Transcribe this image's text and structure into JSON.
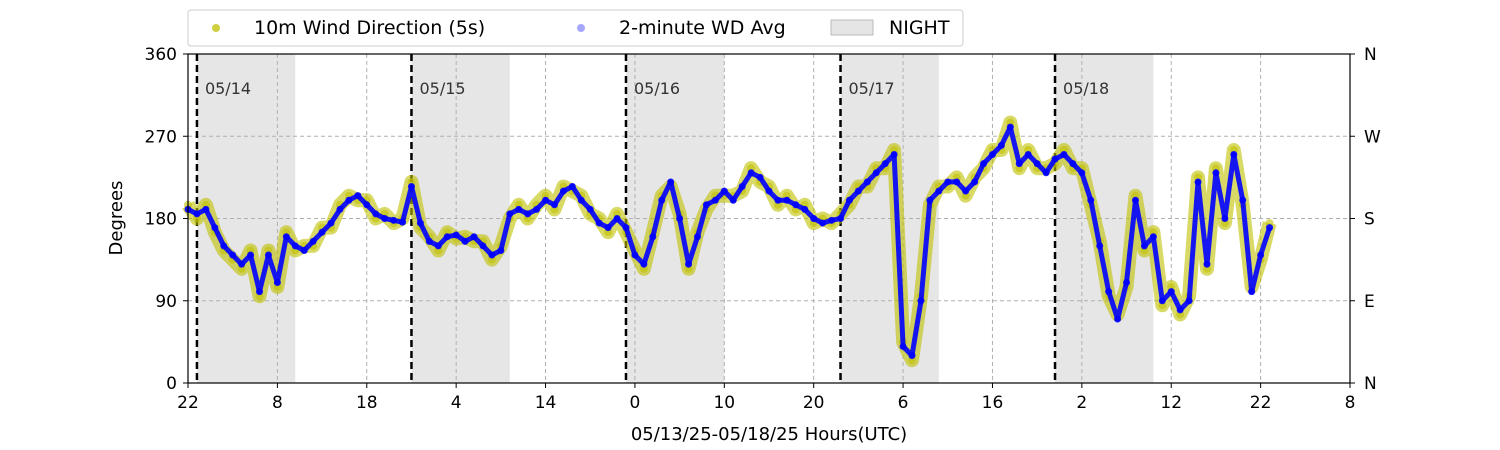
{
  "chart_data": {
    "type": "scatter",
    "xlabel": "05/13/25-05/18/25  Hours(UTC)",
    "ylabel": "Degrees",
    "x_tick_labels": [
      "22",
      "8",
      "18",
      "4",
      "14",
      "0",
      "10",
      "20",
      "6",
      "16",
      "2",
      "12",
      "22",
      "8"
    ],
    "x_range_hours": [
      0,
      130
    ],
    "x_tick_hours": [
      0,
      10,
      20,
      30,
      40,
      50,
      60,
      70,
      80,
      90,
      100,
      110,
      120,
      130
    ],
    "y_ticks": [
      0,
      90,
      180,
      270,
      360
    ],
    "ylim": [
      0,
      360
    ],
    "y2_tick_labels": [
      "N",
      "E",
      "S",
      "W",
      "N"
    ],
    "grid": true,
    "legend_position": "top-left",
    "legend": [
      {
        "label": "10m Wind Direction (5s)",
        "color": "#bfbf00",
        "marker": "dot"
      },
      {
        "label": "2-minute WD Avg",
        "color": "#0000ff",
        "marker": "dot"
      },
      {
        "label": "NIGHT",
        "color": "#d3d3d3",
        "marker": "patch"
      }
    ],
    "night_periods_hours": [
      [
        1,
        12
      ],
      [
        25,
        36
      ],
      [
        49,
        60
      ],
      [
        73,
        84
      ],
      [
        97,
        108
      ]
    ],
    "day_boundaries": [
      {
        "hour": 1,
        "label": "05/14"
      },
      {
        "hour": 25,
        "label": "05/15"
      },
      {
        "hour": 49,
        "label": "05/16"
      },
      {
        "hour": 73,
        "label": "05/17"
      },
      {
        "hour": 97,
        "label": "05/18"
      }
    ],
    "series": [
      {
        "name": "2-minute WD Avg",
        "color": "#0000ff",
        "x_hours": [
          0,
          1,
          2,
          3,
          4,
          5,
          6,
          7,
          8,
          9,
          10,
          11,
          12,
          13,
          14,
          15,
          16,
          17,
          18,
          19,
          20,
          21,
          22,
          23,
          24,
          25,
          26,
          27,
          28,
          29,
          30,
          31,
          32,
          33,
          34,
          35,
          36,
          37,
          38,
          39,
          40,
          41,
          42,
          43,
          44,
          45,
          46,
          47,
          48,
          49,
          50,
          51,
          52,
          53,
          54,
          55,
          56,
          57,
          58,
          59,
          60,
          61,
          62,
          63,
          64,
          65,
          66,
          67,
          68,
          69,
          70,
          71,
          72,
          73,
          74,
          75,
          76,
          77,
          78,
          79,
          80,
          81,
          82,
          83,
          84,
          85,
          86,
          87,
          88,
          89,
          90,
          91,
          92,
          93,
          94,
          95,
          96,
          97,
          98,
          99,
          100,
          101,
          102,
          103,
          104,
          105,
          106,
          107,
          108,
          109,
          110,
          111,
          112,
          113,
          114,
          115,
          116,
          117,
          118,
          119,
          120,
          121
        ],
        "values": [
          190,
          185,
          190,
          170,
          150,
          140,
          130,
          140,
          100,
          140,
          110,
          160,
          150,
          145,
          155,
          165,
          175,
          190,
          200,
          205,
          195,
          185,
          180,
          178,
          176,
          215,
          175,
          155,
          150,
          160,
          162,
          155,
          160,
          150,
          140,
          145,
          185,
          190,
          185,
          190,
          200,
          195,
          210,
          215,
          200,
          190,
          175,
          170,
          180,
          170,
          140,
          130,
          160,
          200,
          220,
          180,
          130,
          160,
          195,
          200,
          210,
          200,
          215,
          230,
          225,
          210,
          200,
          200,
          195,
          190,
          180,
          175,
          178,
          180,
          200,
          210,
          220,
          230,
          240,
          250,
          40,
          30,
          90,
          200,
          210,
          220,
          220,
          210,
          220,
          240,
          250,
          260,
          280,
          240,
          250,
          240,
          230,
          245,
          250,
          240,
          230,
          200,
          150,
          100,
          70,
          110,
          200,
          150,
          160,
          90,
          100,
          80,
          90,
          220,
          130,
          230,
          180,
          250,
          200,
          100,
          140,
          170
        ]
      },
      {
        "name": "10m Wind Direction (5s)",
        "color": "#bfbf00",
        "x_hours": [
          0,
          1,
          2,
          3,
          4,
          5,
          6,
          7,
          8,
          9,
          10,
          11,
          12,
          13,
          14,
          15,
          16,
          17,
          18,
          19,
          20,
          21,
          22,
          23,
          24,
          25,
          26,
          27,
          28,
          29,
          30,
          31,
          32,
          33,
          34,
          35,
          36,
          37,
          38,
          39,
          40,
          41,
          42,
          43,
          44,
          45,
          46,
          47,
          48,
          49,
          50,
          51,
          52,
          53,
          54,
          55,
          56,
          57,
          58,
          59,
          60,
          61,
          62,
          63,
          64,
          65,
          66,
          67,
          68,
          69,
          70,
          71,
          72,
          73,
          74,
          75,
          76,
          77,
          78,
          79,
          80,
          81,
          82,
          83,
          84,
          85,
          86,
          87,
          88,
          89,
          90,
          91,
          92,
          93,
          94,
          95,
          96,
          97,
          98,
          99,
          100,
          101,
          102,
          103,
          104,
          105,
          106,
          107,
          108,
          109,
          110,
          111,
          112,
          113,
          114,
          115,
          116,
          117,
          118,
          119,
          120,
          121
        ],
        "values": [
          195,
          180,
          195,
          165,
          145,
          135,
          125,
          145,
          95,
          145,
          105,
          165,
          145,
          150,
          150,
          170,
          170,
          195,
          205,
          200,
          200,
          180,
          185,
          175,
          180,
          220,
          170,
          160,
          145,
          165,
          158,
          160,
          155,
          155,
          135,
          150,
          180,
          195,
          180,
          195,
          205,
          190,
          215,
          210,
          205,
          185,
          180,
          165,
          185,
          165,
          145,
          125,
          165,
          205,
          215,
          185,
          125,
          165,
          190,
          205,
          205,
          205,
          210,
          235,
          220,
          215,
          195,
          205,
          190,
          195,
          175,
          180,
          175,
          185,
          195,
          215,
          215,
          235,
          235,
          255,
          45,
          25,
          95,
          195,
          215,
          215,
          225,
          205,
          225,
          235,
          255,
          255,
          285,
          235,
          255,
          235,
          235,
          240,
          255,
          235,
          235,
          195,
          155,
          95,
          75,
          105,
          205,
          145,
          165,
          85,
          105,
          75,
          95,
          225,
          125,
          235,
          175,
          255,
          195,
          105,
          135,
          175
        ]
      }
    ]
  }
}
